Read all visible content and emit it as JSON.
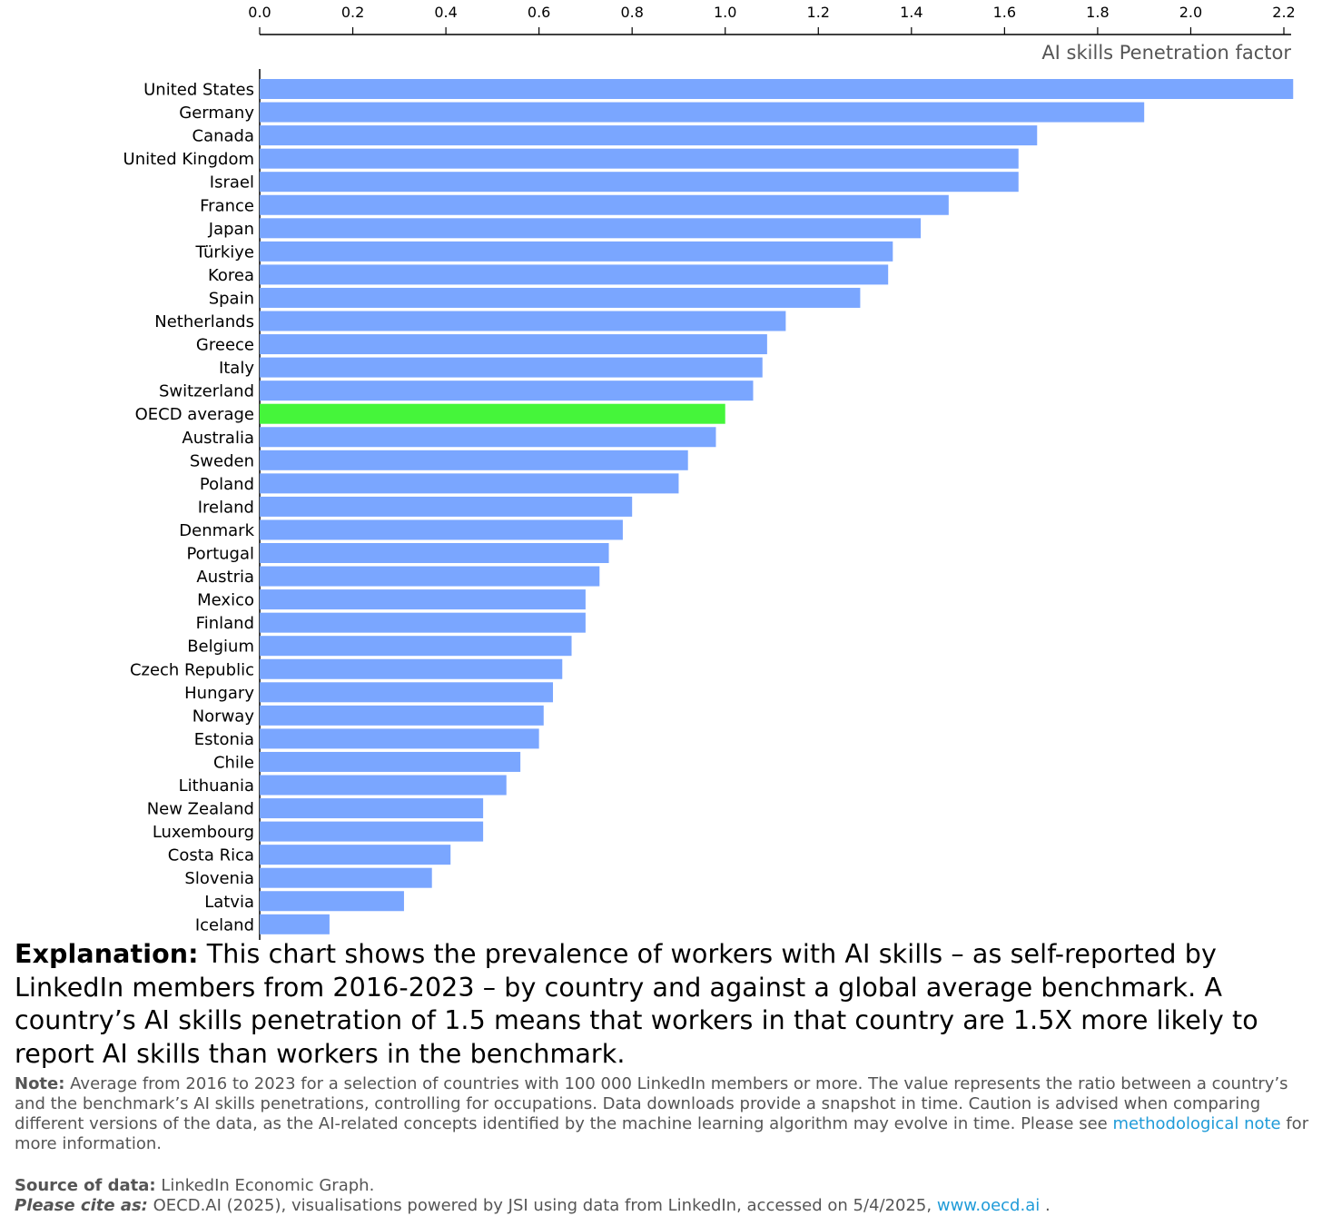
{
  "chart_data": {
    "type": "bar",
    "orientation": "horizontal",
    "xlabel": "AI skills Penetration factor",
    "xlim": [
      0,
      2.2
    ],
    "xticks": [
      "0.0",
      "0.2",
      "0.4",
      "0.6",
      "0.8",
      "1.0",
      "1.2",
      "1.4",
      "1.6",
      "1.8",
      "2.0",
      "2.2"
    ],
    "grid": false,
    "bar_color": "#7aa6ff",
    "highlight_color": "#45f53a",
    "highlight_category": "OECD average",
    "categories": [
      "United States",
      "Germany",
      "Canada",
      "United Kingdom",
      "Israel",
      "France",
      "Japan",
      "Türkiye",
      "Korea",
      "Spain",
      "Netherlands",
      "Greece",
      "Italy",
      "Switzerland",
      "OECD average",
      "Australia",
      "Sweden",
      "Poland",
      "Ireland",
      "Denmark",
      "Portugal",
      "Austria",
      "Mexico",
      "Finland",
      "Belgium",
      "Czech Republic",
      "Hungary",
      "Norway",
      "Estonia",
      "Chile",
      "Lithuania",
      "New Zealand",
      "Luxembourg",
      "Costa Rica",
      "Slovenia",
      "Latvia",
      "Iceland"
    ],
    "values": [
      2.22,
      1.9,
      1.67,
      1.63,
      1.63,
      1.48,
      1.42,
      1.36,
      1.35,
      1.29,
      1.13,
      1.09,
      1.08,
      1.06,
      1.0,
      0.98,
      0.92,
      0.9,
      0.8,
      0.78,
      0.75,
      0.73,
      0.7,
      0.7,
      0.67,
      0.65,
      0.63,
      0.61,
      0.6,
      0.56,
      0.53,
      0.48,
      0.48,
      0.41,
      0.37,
      0.31,
      0.15
    ]
  },
  "explanation": {
    "label": "Explanation:",
    "text": " This chart shows the prevalence of workers with AI skills – as self-reported by LinkedIn members from 2016-2023 – by country and against a global average benchmark. A country’s AI skills penetration of 1.5 means that workers in that country are 1.5X more likely to report AI skills than workers in the benchmark."
  },
  "note": {
    "label": "Note:",
    "text": " Average from 2016 to 2023 for a selection of countries with 100 000 LinkedIn members or more. The value represents the ratio between a country’s and the benchmark’s AI skills penetrations, controlling for occupations. Data downloads provide a snapshot in time. Caution is advised when comparing different versions of the data, as the AI-related concepts identified by the machine learning algorithm may evolve in time. Please see ",
    "link": "methodological note",
    "tail": " for more information."
  },
  "source": {
    "label": "Source of data:",
    "text": " LinkedIn Economic Graph."
  },
  "cite": {
    "label": "Please cite as:",
    "text": " OECD.AI (2025), visualisations powered by JSI using data from LinkedIn, accessed on 5/4/2025, ",
    "link": "www.oecd.ai",
    "tail": " ."
  }
}
